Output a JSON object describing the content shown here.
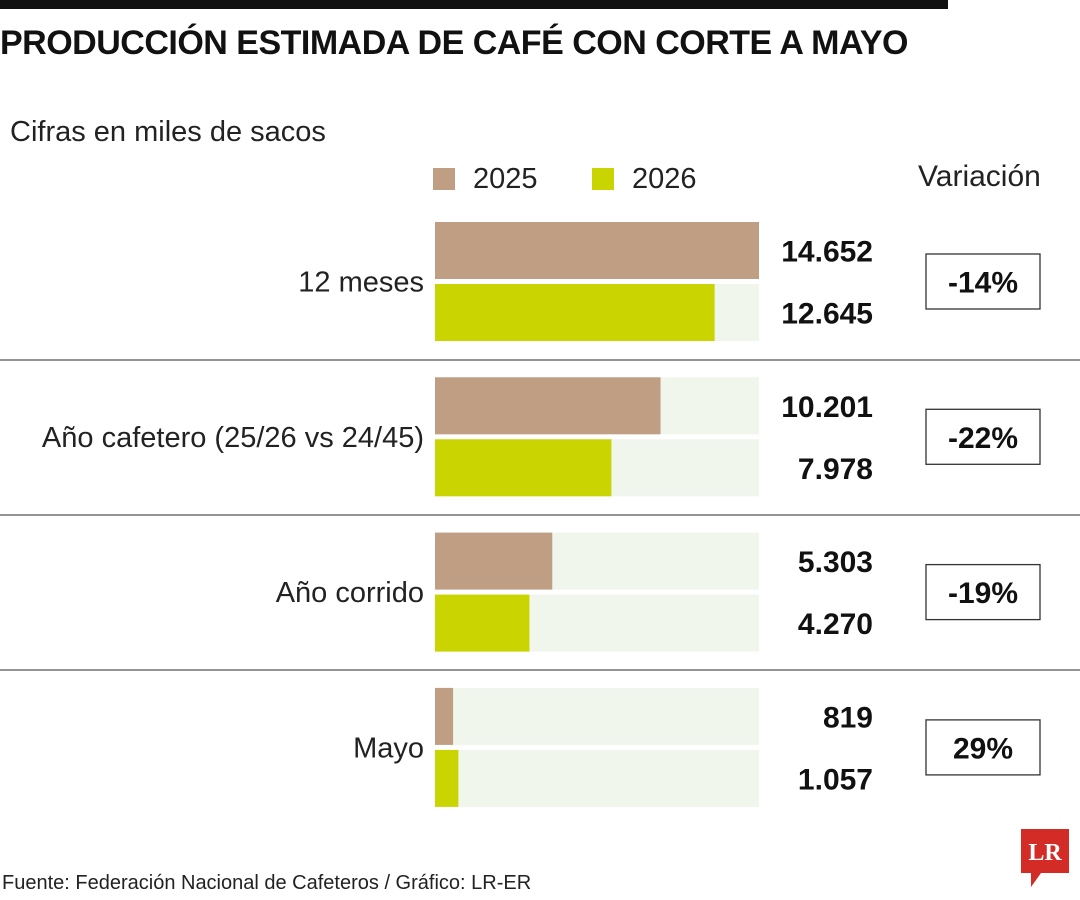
{
  "title": "PRODUCCIÓN ESTIMADA DE CAFÉ CON CORTE A MAYO",
  "subtitle": "Cifras en miles de sacos",
  "variation_header": "Variación",
  "source": "Fuente: Federación Nacional de Cafeteros / Gráfico: LR-ER",
  "logo_text": "LR",
  "colors": {
    "series_2025": "#bf9e84",
    "series_2026": "#c9d400",
    "track": "#f1f6ed",
    "logo": "#d32c26",
    "divider": "#555555"
  },
  "chart_data": {
    "type": "bar",
    "orientation": "horizontal",
    "title": "PRODUCCIÓN ESTIMADA DE CAFÉ CON CORTE A MAYO",
    "subtitle": "Cifras en miles de sacos",
    "categories": [
      "12 meses",
      "Año cafetero (25/26 vs 24/45)",
      "Año corrido",
      "Mayo"
    ],
    "series": [
      {
        "name": "2025",
        "values": [
          14652,
          10201,
          5303,
          819
        ],
        "labels": [
          "14.652",
          "10.201",
          "5.303",
          "819"
        ]
      },
      {
        "name": "2026",
        "values": [
          12645,
          7978,
          4270,
          1057
        ],
        "labels": [
          "12.645",
          "7.978",
          "4.270",
          "1.057"
        ]
      }
    ],
    "variation": [
      "-14%",
      "-22%",
      "-19%",
      "29%"
    ],
    "xlim": [
      0,
      14652
    ],
    "legend": "top",
    "grid": false
  }
}
